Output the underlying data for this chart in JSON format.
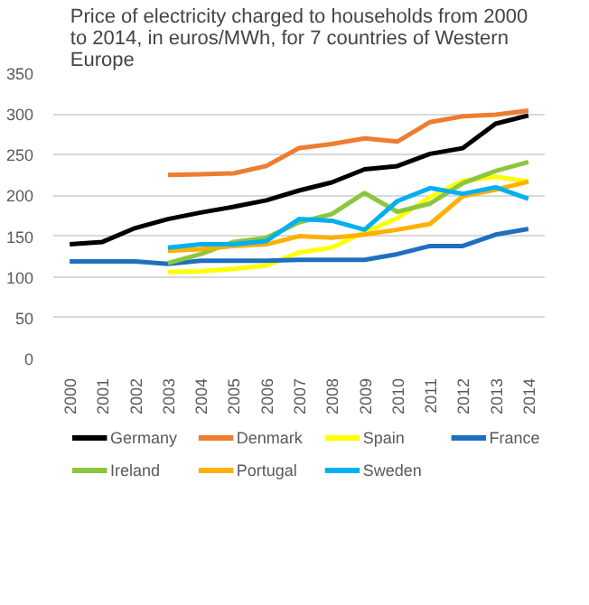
{
  "chart_data": {
    "type": "line",
    "title": "Price of electricity charged to households from 2000 to 2014, in euros/MWh, for 7 countries of Western Europe",
    "categories": [
      "2000",
      "2001",
      "2002",
      "2003",
      "2004",
      "2005",
      "2006",
      "2007",
      "2008",
      "2009",
      "2010",
      "2011",
      "2012",
      "2013",
      "2014"
    ],
    "ylim": [
      0,
      350
    ],
    "yticks": [
      0,
      50,
      100,
      150,
      200,
      250,
      300,
      350
    ],
    "grid": "y",
    "legend": "bottom",
    "marker": "none",
    "line_style": "solid",
    "series": [
      {
        "name": "Germany",
        "color": "#000000",
        "values": [
          140,
          143,
          160,
          171,
          179,
          186,
          194,
          206,
          216,
          232,
          236,
          251,
          258,
          288,
          298
        ]
      },
      {
        "name": "Denmark",
        "color": "#ed7d31",
        "values": [
          null,
          null,
          null,
          225,
          226,
          227,
          236,
          258,
          263,
          270,
          266,
          290,
          297,
          299,
          304
        ]
      },
      {
        "name": "Spain",
        "color": "#ffff00",
        "values": [
          null,
          null,
          null,
          106,
          107,
          110,
          114,
          130,
          136,
          155,
          172,
          198,
          218,
          223,
          217
        ]
      },
      {
        "name": "France",
        "color": "#1f6fc0",
        "values": [
          119,
          119,
          119,
          116,
          120,
          120,
          120,
          121,
          121,
          121,
          128,
          138,
          138,
          152,
          159
        ]
      },
      {
        "name": "Ireland",
        "color": "#8cc63f",
        "values": [
          null,
          null,
          null,
          117,
          128,
          143,
          148,
          167,
          177,
          203,
          180,
          190,
          215,
          230,
          241
        ]
      },
      {
        "name": "Portugal",
        "color": "#ffb000",
        "values": [
          null,
          null,
          null,
          132,
          134,
          138,
          140,
          150,
          148,
          152,
          158,
          165,
          199,
          207,
          217
        ]
      },
      {
        "name": "Sweden",
        "color": "#00b0f0",
        "values": [
          null,
          null,
          null,
          136,
          140,
          140,
          144,
          171,
          169,
          158,
          193,
          209,
          202,
          210,
          196
        ]
      }
    ]
  }
}
